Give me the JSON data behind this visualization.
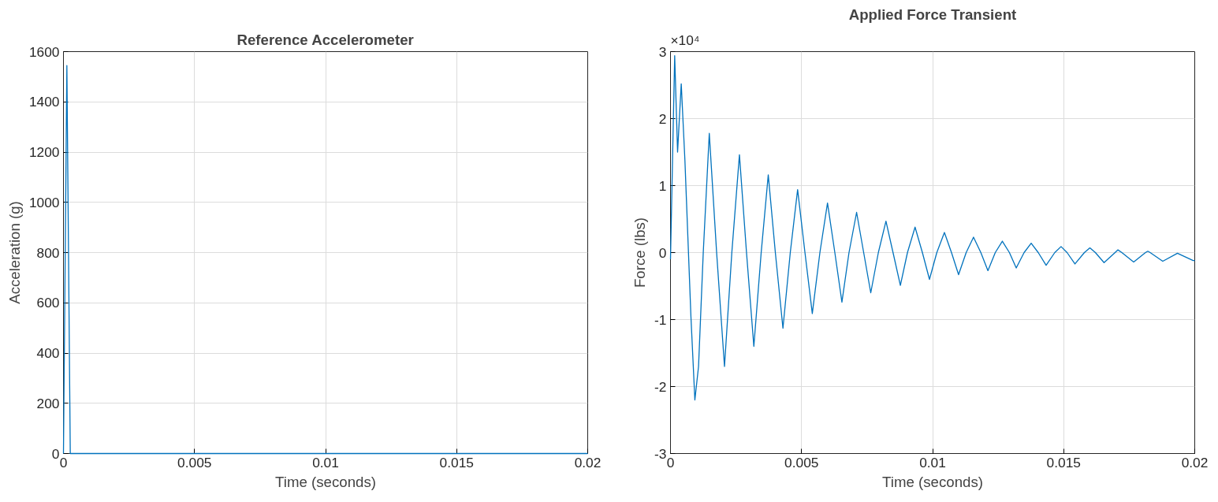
{
  "chart_data": [
    {
      "type": "line",
      "title": "Reference Accelerometer",
      "xlabel": "Time (seconds)",
      "ylabel": "Acceleration (g)",
      "x": [
        0,
        0.00013,
        0.00026,
        0.02
      ],
      "series": [
        {
          "color": "#0072bd",
          "values": [
            0,
            1545,
            0,
            0
          ]
        }
      ],
      "xlim": [
        0,
        0.02
      ],
      "xticks": [
        0,
        0.005,
        0.01,
        0.015,
        0.02
      ],
      "ylim": [
        0,
        1600
      ],
      "yticks": [
        0,
        200,
        400,
        600,
        800,
        1000,
        1200,
        1400,
        1600
      ],
      "grid": true
    },
    {
      "type": "line",
      "title": "Applied Force Transient",
      "xlabel": "Time (seconds)",
      "ylabel": "Force (lbs)",
      "annotations": [
        "×10⁴"
      ],
      "x": [
        0,
        0.00016,
        0.00027,
        0.00041,
        0.00055,
        0.00078,
        0.00093,
        0.00107,
        0.00125,
        0.00148,
        0.00176,
        0.00206,
        0.00234,
        0.00263,
        0.0029,
        0.00318,
        0.00346,
        0.00373,
        0.004,
        0.00429,
        0.00457,
        0.00485,
        0.00513,
        0.00541,
        0.0057,
        0.00599,
        0.00627,
        0.00654,
        0.00681,
        0.0071,
        0.00737,
        0.00764,
        0.00793,
        0.00822,
        0.00849,
        0.00877,
        0.00904,
        0.00933,
        0.00961,
        0.00988,
        0.01016,
        0.01045,
        0.01072,
        0.01099,
        0.01128,
        0.01156,
        0.01184,
        0.01211,
        0.01239,
        0.01266,
        0.01293,
        0.01319,
        0.01349,
        0.01376,
        0.01403,
        0.01433,
        0.01466,
        0.0149,
        0.01513,
        0.01543,
        0.01579,
        0.016,
        0.01621,
        0.01654,
        0.01696,
        0.01707,
        0.01722,
        0.01767,
        0.01812,
        0.01821,
        0.0183,
        0.01878,
        0.01934,
        0.01994,
        0.02
      ],
      "series": [
        {
          "color": "#0072bd",
          "values": [
            -0.1,
            2.94,
            1.5,
            2.52,
            1.38,
            -0.96,
            -2.2,
            -1.7,
            0,
            1.78,
            0,
            -1.7,
            0,
            1.46,
            0,
            -1.4,
            0,
            1.16,
            0,
            -1.13,
            0,
            0.94,
            0,
            -0.91,
            0,
            0.74,
            0,
            -0.74,
            0,
            0.6,
            0,
            -0.6,
            0,
            0.47,
            0,
            -0.49,
            0,
            0.38,
            0,
            -0.4,
            0,
            0.3,
            0,
            -0.33,
            0,
            0.23,
            0,
            -0.27,
            0,
            0.17,
            0,
            -0.23,
            0,
            0.14,
            0,
            -0.19,
            0,
            0.09,
            0,
            -0.17,
            0,
            0.07,
            0,
            -0.15,
            0,
            0.04,
            0,
            -0.14,
            0,
            0.02,
            0,
            -0.13,
            -0.01,
            -0.12,
            -0.12
          ]
        }
      ],
      "xlim": [
        0,
        0.02
      ],
      "xticks": [
        0,
        0.005,
        0.01,
        0.015,
        0.02
      ],
      "ylim": [
        -3,
        3
      ],
      "yticks": [
        -3,
        -2,
        -1,
        0,
        1,
        2,
        3
      ],
      "grid": true
    }
  ]
}
